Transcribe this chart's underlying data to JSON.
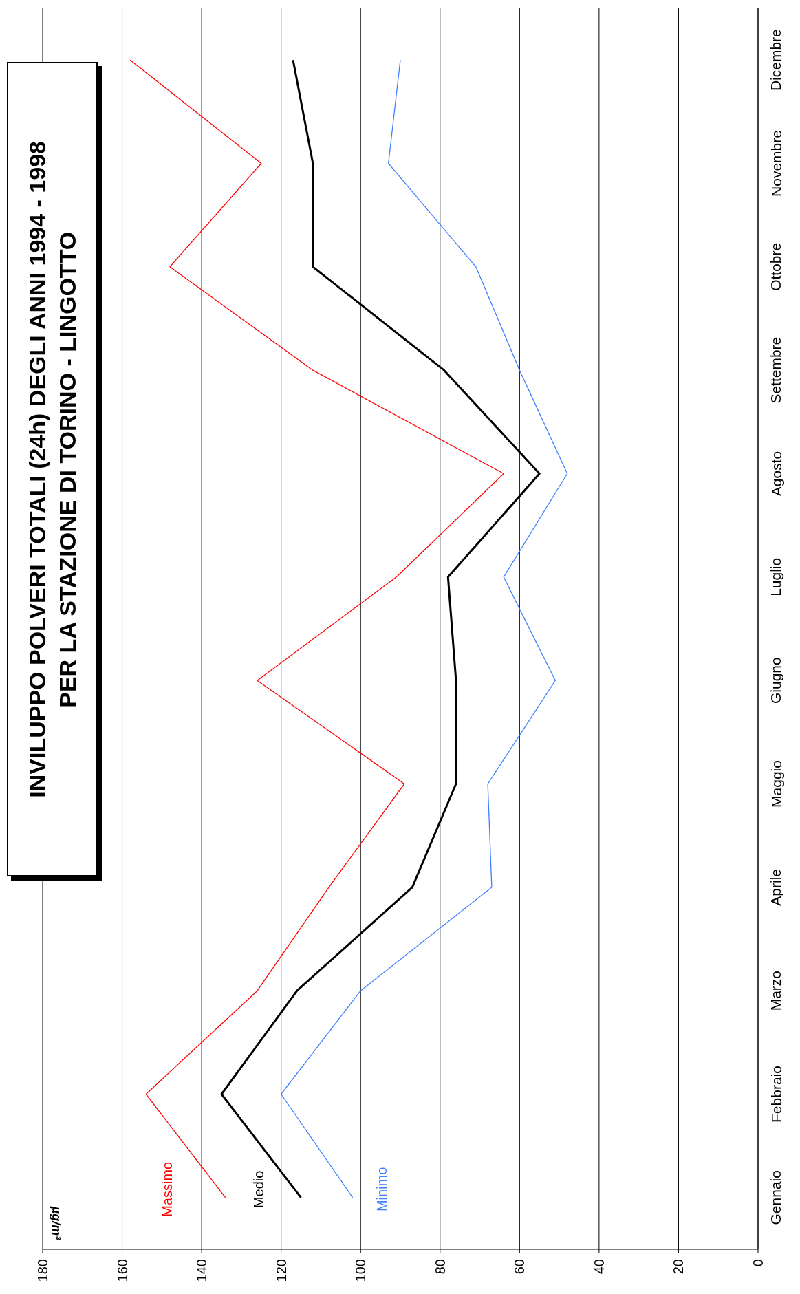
{
  "chart_data": {
    "type": "line",
    "orientation": "horizontal",
    "title": "INVILUPPO POLVERI TOTALI (24h) DEGLI ANNI 1994 - 1998",
    "subtitle": "PER LA STAZIONE DI TORINO - LINGOTTO",
    "ylabel": "µg/m³",
    "categories": [
      "Dicembre",
      "Novembre",
      "Ottobre",
      "Settembre",
      "Agosto",
      "Luglio",
      "Giugno",
      "Maggio",
      "Aprile",
      "Marzo",
      "Febbraio",
      "Gennaio"
    ],
    "series": [
      {
        "name": "Massimo",
        "color": "#ff0000",
        "values": [
          158,
          125,
          148,
          112,
          64,
          91,
          126,
          89,
          108,
          126,
          154,
          134
        ]
      },
      {
        "name": "Medio",
        "color": "#000000",
        "values": [
          117,
          112,
          112,
          79,
          55,
          78,
          76,
          76,
          87,
          116,
          135,
          115
        ]
      },
      {
        "name": "Minimo",
        "color": "#4080ff",
        "values": [
          90,
          93,
          71,
          60,
          48,
          64,
          51,
          68,
          67,
          100,
          120,
          102
        ]
      }
    ],
    "xlim": [
      180,
      0
    ],
    "xticks": [
      180,
      160,
      140,
      120,
      100,
      80,
      60,
      40,
      20,
      0
    ],
    "grid": "x",
    "legend": false,
    "marker": "none",
    "line_style": "solid"
  }
}
